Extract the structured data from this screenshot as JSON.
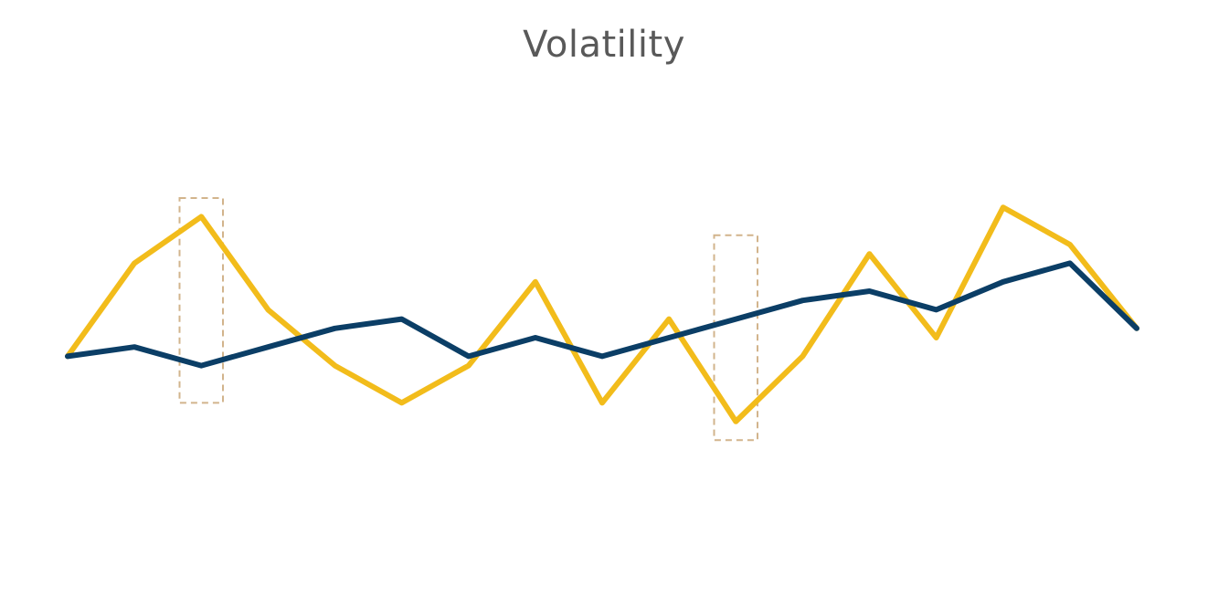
{
  "chart_data": {
    "type": "line",
    "title": "Volatility",
    "xlabel": "",
    "ylabel": "",
    "grid": false,
    "axes_visible": false,
    "ylim": [
      0,
      10
    ],
    "x": [
      1,
      2,
      3,
      4,
      5,
      6,
      7,
      8,
      9,
      10,
      11,
      12,
      13,
      14,
      15,
      16,
      17
    ],
    "series": [
      {
        "color": "#F2BC1B",
        "values": [
          4.6,
          6.6,
          7.6,
          5.6,
          4.4,
          3.6,
          4.4,
          6.2,
          3.6,
          5.4,
          3.2,
          4.6,
          6.8,
          5.0,
          7.8,
          7.0,
          5.2
        ]
      },
      {
        "color": "#0B3E66",
        "values": [
          4.6,
          4.8,
          4.4,
          4.8,
          5.2,
          5.4,
          4.6,
          5.0,
          4.6,
          5.0,
          5.4,
          5.8,
          6.0,
          5.6,
          6.2,
          6.6,
          5.2
        ]
      }
    ],
    "highlight_boxes": [
      {
        "x_index": 3,
        "y_range": [
          3.6,
          8.0
        ],
        "style": "dashed",
        "color": "#D2B48C"
      },
      {
        "x_index": 11,
        "y_range": [
          2.8,
          7.2
        ],
        "style": "dashed",
        "color": "#D2B48C"
      }
    ]
  }
}
